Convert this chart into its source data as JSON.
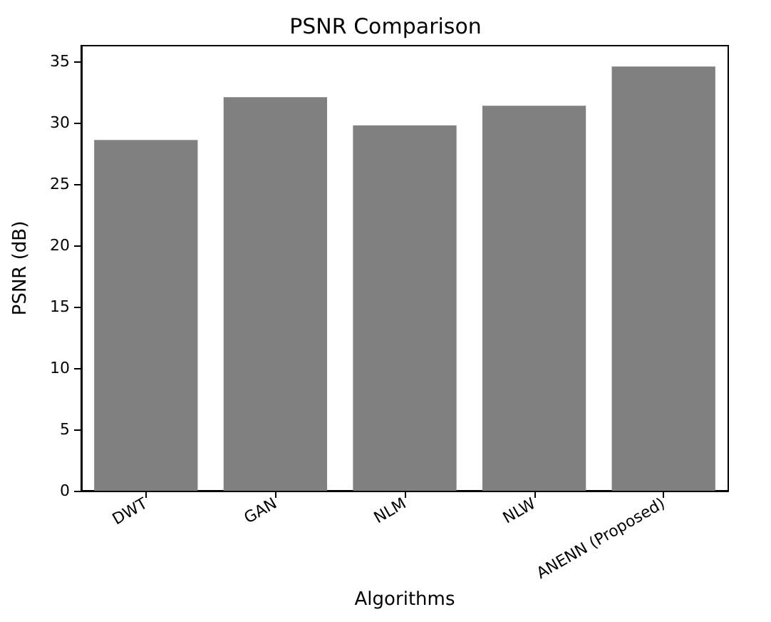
{
  "chart_data": {
    "type": "bar",
    "title": "PSNR Comparison",
    "xlabel": "Algorithms",
    "ylabel": "PSNR (dB)",
    "categories": [
      "DWT",
      "GAN",
      "NLM",
      "NLW",
      "ANENN (Proposed)"
    ],
    "values": [
      28.6,
      32.1,
      29.8,
      31.4,
      34.6
    ],
    "color": "#808080",
    "ylim": [
      0,
      36.3
    ],
    "yticks": [
      0,
      5,
      10,
      15,
      20,
      25,
      30,
      35
    ],
    "grid": false
  }
}
